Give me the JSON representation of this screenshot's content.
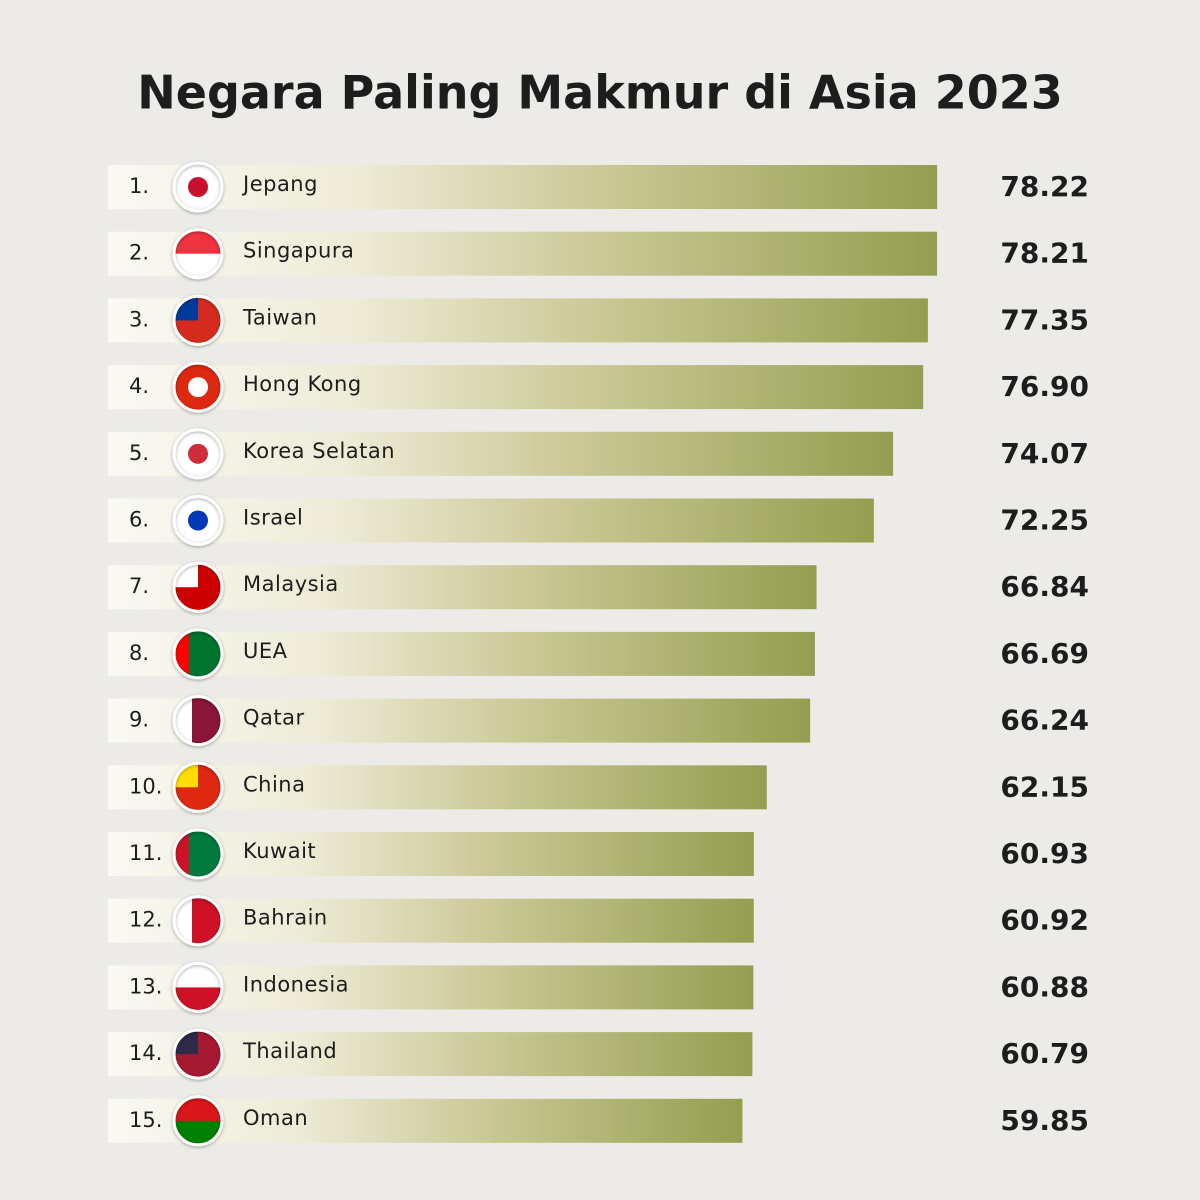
{
  "chart_data": {
    "type": "bar",
    "orientation": "horizontal",
    "title": "Negara Paling Makmur di Asia 2023",
    "ranks": [
      "1.",
      "2.",
      "3.",
      "4.",
      "5.",
      "6.",
      "7.",
      "8.",
      "9.",
      "10.",
      "11.",
      "12.",
      "13.",
      "14.",
      "15."
    ],
    "categories": [
      "Jepang",
      "Singapura",
      "Taiwan",
      "Hong Kong",
      "Korea Selatan",
      "Israel",
      "Malaysia",
      "UEA",
      "Qatar",
      "China",
      "Kuwait",
      "Bahrain",
      "Indonesia",
      "Thailand",
      "Oman"
    ],
    "values": [
      78.22,
      78.21,
      77.35,
      76.9,
      74.07,
      72.25,
      66.84,
      66.69,
      66.24,
      62.15,
      60.93,
      60.92,
      60.88,
      60.79,
      59.85
    ],
    "value_labels": [
      "78.22",
      "78.21",
      "77.35",
      "76.90",
      "74.07",
      "72.25",
      "66.84",
      "66.69",
      "66.24",
      "62.15",
      "60.93",
      "60.92",
      "60.88",
      "60.79",
      "59.85"
    ],
    "color": "#9ba05a",
    "xlim": [
      0,
      80
    ]
  }
}
